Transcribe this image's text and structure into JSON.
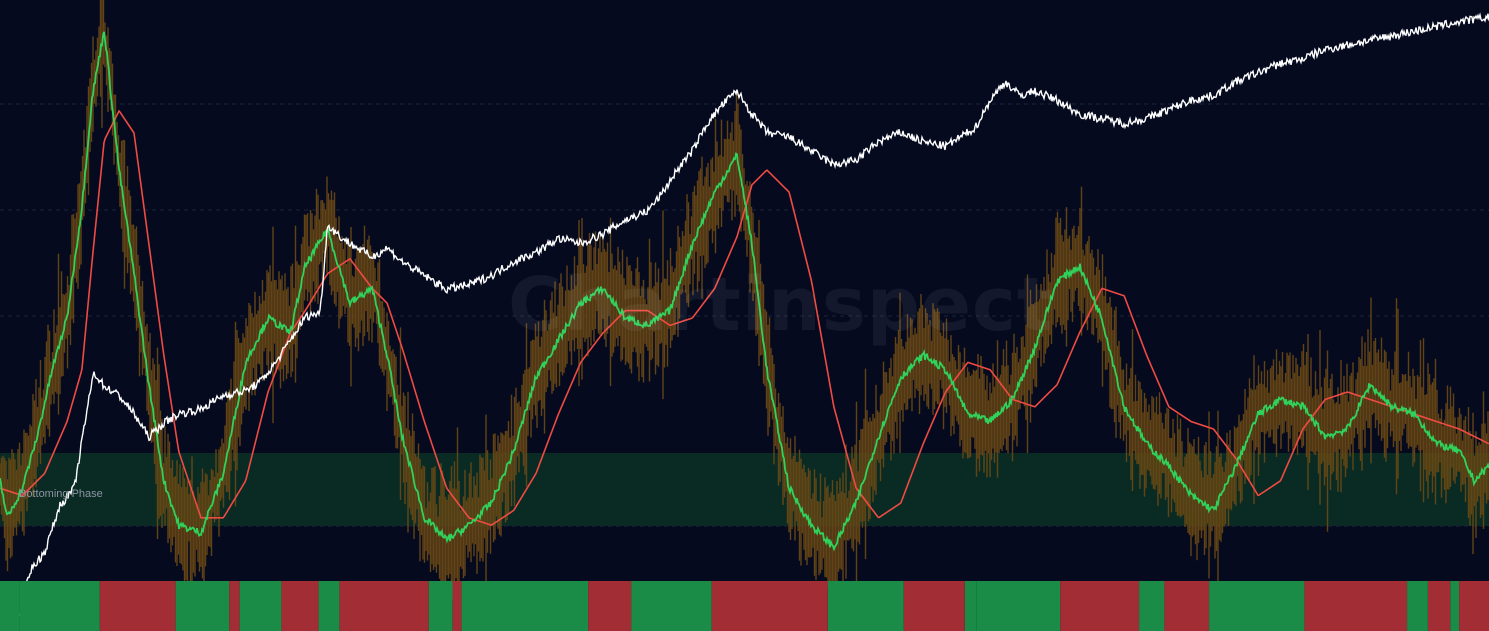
{
  "watermark": "Chartinspect",
  "zone_label": "Bottoming Phase",
  "colors": {
    "background": "#050a1f",
    "oscillator_band": "#6b4a14",
    "fast_line": "#2fd35c",
    "slow_line": "#ef4b43",
    "price_line": "#ffffff",
    "bottom_zone": "#0a2a24",
    "bar_positive": "#1a8c47",
    "bar_negative": "#a32d35",
    "gridline": "#1d2438"
  },
  "chart_data": {
    "type": "line",
    "title": "",
    "xlabel": "",
    "ylabel": "",
    "x_range": [
      0,
      100
    ],
    "grid": "horizontal dashed",
    "panels": {
      "oscillator": {
        "ylim": [
          0,
          100
        ],
        "gridlines": [
          23,
          43,
          63,
          83
        ],
        "bottom_zone": [
          0,
          14
        ],
        "series": [
          {
            "role": "fast",
            "color": "#2fd35c",
            "x": [
              0,
              0.5,
              1.5,
              2.5,
              3.5,
              4.5,
              5.5,
              6.2,
              7.0,
              8.0,
              9.0,
              10.0,
              11.0,
              12.0,
              13.5,
              15.0,
              16.5,
              18.0,
              19.5,
              20.5,
              22.0,
              23.5,
              25.0,
              26.0,
              27.0,
              28.5,
              30.0,
              31.5,
              33.0,
              34.5,
              36.0,
              37.5,
              39.0,
              40.5,
              42.0,
              43.5,
              45.0,
              46.5,
              48.0,
              49.5,
              50.5,
              51.5,
              53.0,
              54.5,
              56.0,
              57.5,
              59.0,
              60.5,
              62.0,
              63.5,
              65.0,
              66.5,
              68.0,
              69.5,
              71.0,
              72.5,
              74.0,
              75.5,
              77.0,
              78.5,
              80.0,
              81.5,
              83.0,
              84.5,
              86.0,
              87.5,
              89.0,
              90.5,
              92.0,
              93.5,
              95.0,
              96.5,
              98.0,
              99.0,
              100
            ],
            "y": [
              18,
              13,
              17,
              24,
              33,
              40,
              55,
              70,
              79,
              60,
              46,
              31,
              18,
              12,
              11,
              19,
              34,
              40,
              38,
              47,
              52,
              42,
              44,
              35,
              24,
              13,
              10,
              12,
              15,
              22,
              32,
              37,
              42,
              44,
              40,
              39,
              41,
              50,
              57,
              62,
              50,
              33,
              17,
              12,
              9,
              15,
              24,
              32,
              35,
              33,
              27,
              26,
              29,
              36,
              45,
              47,
              40,
              28,
              23,
              20,
              16,
              14,
              20,
              27,
              29,
              28,
              24,
              25,
              31,
              28,
              27,
              23,
              22,
              18,
              20
            ]
          },
          {
            "role": "slow",
            "color": "#ef4b43",
            "x": [
              0,
              1.5,
              3.0,
              4.5,
              5.5,
              6.2,
              7.0,
              8.0,
              9.0,
              10.0,
              11.0,
              12.0,
              13.5,
              15.0,
              16.5,
              18.0,
              19.5,
              20.5,
              22.0,
              23.5,
              25.0,
              26.0,
              27.0,
              28.5,
              30.0,
              31.5,
              33.0,
              34.5,
              36.0,
              37.5,
              39.0,
              40.5,
              42.0,
              43.5,
              45.0,
              46.5,
              48.0,
              49.5,
              50.5,
              51.5,
              53.0,
              54.5,
              56.0,
              57.5,
              59.0,
              60.5,
              62.0,
              63.5,
              65.0,
              66.5,
              68.0,
              69.5,
              71.0,
              72.5,
              74.0,
              75.5,
              77.0,
              78.5,
              80.0,
              81.5,
              83.0,
              84.5,
              86.0,
              87.5,
              89.0,
              90.5,
              92.0,
              93.5,
              95.0,
              96.5,
              98.0,
              100
            ],
            "y": [
              17,
              16,
              19,
              26,
              33,
              48,
              64,
              68,
              65,
              50,
              35,
              22,
              13,
              13,
              18,
              30,
              38,
              41,
              46,
              48,
              44,
              42,
              36,
              26,
              17,
              13,
              12,
              14,
              19,
              27,
              34,
              38,
              41,
              41,
              39,
              40,
              44,
              51,
              58,
              60,
              57,
              45,
              28,
              17,
              13,
              15,
              23,
              30,
              34,
              33,
              29,
              28,
              31,
              38,
              44,
              43,
              35,
              28,
              26,
              25,
              21,
              16,
              18,
              25,
              29,
              30,
              29,
              28,
              27,
              26,
              25,
              23
            ]
          }
        ]
      },
      "price": {
        "scale": "log",
        "color": "#ffffff",
        "x": [
          0,
          1.2,
          2.0,
          3.0,
          4.0,
          5.0,
          5.8,
          6.3,
          7.0,
          8.0,
          9.0,
          10.0,
          11.0,
          12.0,
          13.5,
          15.0,
          16.5,
          17.5,
          18.5,
          19.5,
          20.5,
          21.5,
          22.0,
          23.0,
          24.0,
          25.0,
          26.0,
          27.0,
          28.5,
          30.0,
          31.5,
          33.0,
          34.5,
          36.0,
          37.5,
          39.0,
          40.5,
          42.0,
          43.5,
          44.5,
          45.5,
          46.5,
          47.5,
          48.5,
          49.5,
          50.5,
          51.5,
          53.0,
          54.5,
          56.0,
          57.5,
          59.0,
          60.5,
          62.0,
          63.5,
          64.5,
          65.5,
          66.5,
          67.5,
          68.5,
          69.5,
          71.0,
          72.5,
          74.0,
          75.5,
          77.0,
          78.5,
          80.0,
          81.5,
          83.0,
          84.5,
          86.0,
          87.5,
          89.0,
          90.5,
          92.0,
          93.5,
          95.0,
          96.5,
          98.0,
          100
        ],
        "y": [
          0.0,
          0.1,
          1.2,
          1.6,
          2.6,
          3.0,
          4.6,
          5.5,
          5.2,
          5.0,
          4.6,
          4.1,
          4.4,
          4.6,
          4.7,
          5.0,
          5.1,
          5.3,
          5.7,
          6.2,
          6.7,
          6.8,
          8.7,
          8.4,
          8.2,
          8.0,
          8.2,
          7.9,
          7.6,
          7.3,
          7.4,
          7.6,
          7.9,
          8.1,
          8.4,
          8.3,
          8.5,
          8.8,
          9.0,
          9.4,
          9.9,
          10.3,
          10.9,
          11.3,
          11.6,
          11.1,
          10.7,
          10.6,
          10.3,
          10.0,
          10.1,
          10.5,
          10.7,
          10.5,
          10.4,
          10.6,
          10.8,
          11.4,
          11.8,
          11.5,
          11.6,
          11.4,
          11.1,
          11.0,
          10.9,
          11.0,
          11.2,
          11.4,
          11.5,
          11.8,
          12.0,
          12.2,
          12.3,
          12.5,
          12.6,
          12.7,
          12.8,
          12.9,
          13.0,
          13.1,
          13.2
        ]
      },
      "phase_bar": {
        "legend": [
          "positive",
          "negative"
        ],
        "segments": [
          {
            "start": 0,
            "end": 1.3,
            "state": "positive"
          },
          {
            "start": 1.3,
            "end": 6.7,
            "state": "positive"
          },
          {
            "start": 6.7,
            "end": 11.8,
            "state": "negative"
          },
          {
            "start": 11.8,
            "end": 15.4,
            "state": "positive"
          },
          {
            "start": 15.4,
            "end": 16.1,
            "state": "negative"
          },
          {
            "start": 16.1,
            "end": 18.9,
            "state": "positive"
          },
          {
            "start": 18.9,
            "end": 21.4,
            "state": "negative"
          },
          {
            "start": 21.4,
            "end": 22.8,
            "state": "positive"
          },
          {
            "start": 22.8,
            "end": 28.8,
            "state": "negative"
          },
          {
            "start": 28.8,
            "end": 30.4,
            "state": "positive"
          },
          {
            "start": 30.4,
            "end": 31.0,
            "state": "negative"
          },
          {
            "start": 31.0,
            "end": 32.0,
            "state": "positive"
          },
          {
            "start": 32.0,
            "end": 39.5,
            "state": "positive"
          },
          {
            "start": 39.5,
            "end": 42.4,
            "state": "negative"
          },
          {
            "start": 42.4,
            "end": 47.8,
            "state": "positive"
          },
          {
            "start": 47.8,
            "end": 49.6,
            "state": "negative"
          },
          {
            "start": 49.6,
            "end": 55.6,
            "state": "negative"
          },
          {
            "start": 55.6,
            "end": 60.7,
            "state": "positive"
          },
          {
            "start": 60.7,
            "end": 64.8,
            "state": "negative"
          },
          {
            "start": 64.8,
            "end": 65.6,
            "state": "positive"
          },
          {
            "start": 65.6,
            "end": 71.2,
            "state": "positive"
          },
          {
            "start": 71.2,
            "end": 76.5,
            "state": "negative"
          },
          {
            "start": 76.5,
            "end": 78.2,
            "state": "positive"
          },
          {
            "start": 78.2,
            "end": 81.2,
            "state": "negative"
          },
          {
            "start": 81.2,
            "end": 87.6,
            "state": "positive"
          },
          {
            "start": 87.6,
            "end": 90.8,
            "state": "negative"
          },
          {
            "start": 90.8,
            "end": 94.5,
            "state": "negative"
          },
          {
            "start": 94.5,
            "end": 95.9,
            "state": "positive"
          },
          {
            "start": 95.9,
            "end": 97.4,
            "state": "negative"
          },
          {
            "start": 97.4,
            "end": 98.0,
            "state": "positive"
          },
          {
            "start": 98.0,
            "end": 100,
            "state": "negative"
          }
        ]
      }
    }
  }
}
